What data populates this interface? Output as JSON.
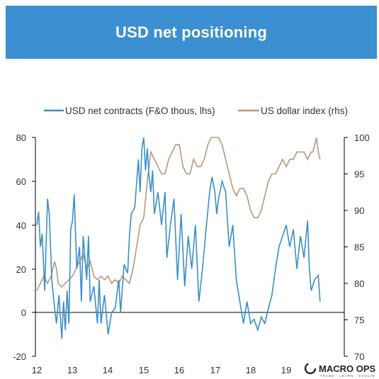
{
  "header": {
    "title": "USD net positioning"
  },
  "logo": {
    "name": "MACRO OPS",
    "tagline": "TRADE · LEARN · EVOLVE"
  },
  "colors": {
    "banner": "#3b8fd0",
    "contracts": "#3a8fc8",
    "dollar_index": "#b8977a"
  },
  "chart_data": {
    "type": "line",
    "title": "",
    "legend_position": "top",
    "x_axis": {
      "ticks": [
        "12",
        "13",
        "14",
        "15",
        "16",
        "17",
        "18",
        "19"
      ],
      "range": [
        2012.0,
        2019.95
      ]
    },
    "y_left": {
      "ticks": [
        "80",
        "60",
        "40",
        "20",
        "0",
        "-20"
      ],
      "range": [
        -20,
        80
      ]
    },
    "y_right": {
      "ticks": [
        "100",
        "95",
        "90",
        "85",
        "80",
        "75",
        "70"
      ],
      "range": [
        70,
        100
      ]
    },
    "series": [
      {
        "name": "USD net contracts (F&O thous, lhs)",
        "axis": "left",
        "x": [
          2012.0,
          2012.05,
          2012.1,
          2012.15,
          2012.22,
          2012.3,
          2012.35,
          2012.42,
          2012.5,
          2012.55,
          2012.62,
          2012.7,
          2012.75,
          2012.8,
          2012.85,
          2012.9,
          2012.95,
          2013.0,
          2013.05,
          2013.12,
          2013.2,
          2013.25,
          2013.3,
          2013.4,
          2013.45,
          2013.5,
          2013.6,
          2013.7,
          2013.75,
          2013.8,
          2013.9,
          2014.0,
          2014.1,
          2014.2,
          2014.3,
          2014.35,
          2014.45,
          2014.55,
          2014.6,
          2014.65,
          2014.75,
          2014.85,
          2014.9,
          2014.95,
          2015.0,
          2015.05,
          2015.1,
          2015.15,
          2015.2,
          2015.25,
          2015.3,
          2015.4,
          2015.5,
          2015.6,
          2015.65,
          2015.75,
          2015.85,
          2015.95,
          2016.05,
          2016.15,
          2016.25,
          2016.35,
          2016.45,
          2016.55,
          2016.65,
          2016.75,
          2016.85,
          2016.92,
          2017.0,
          2017.05,
          2017.1,
          2017.2,
          2017.3,
          2017.4,
          2017.5,
          2017.6,
          2017.7,
          2017.8,
          2017.9,
          2018.0,
          2018.1,
          2018.2,
          2018.3,
          2018.4,
          2018.5,
          2018.6,
          2018.7,
          2018.8,
          2018.9,
          2019.0,
          2019.1,
          2019.2,
          2019.3,
          2019.4,
          2019.5,
          2019.6,
          2019.65,
          2019.7,
          2019.8,
          2019.9,
          2019.95
        ],
        "y": [
          40,
          46,
          30,
          36,
          10,
          52,
          45,
          15,
          2,
          -5,
          8,
          -12,
          5,
          -8,
          10,
          -5,
          38,
          42,
          54,
          20,
          30,
          5,
          35,
          15,
          35,
          5,
          12,
          -5,
          15,
          -5,
          8,
          -10,
          0,
          2,
          15,
          0,
          22,
          18,
          35,
          45,
          48,
          70,
          55,
          75,
          80,
          65,
          75,
          62,
          55,
          65,
          45,
          55,
          40,
          55,
          25,
          40,
          52,
          15,
          45,
          12,
          35,
          20,
          40,
          5,
          20,
          38,
          55,
          62,
          55,
          45,
          52,
          60,
          55,
          30,
          40,
          15,
          5,
          -5,
          5,
          -5,
          -3,
          -8,
          -2,
          -5,
          2,
          8,
          20,
          30,
          35,
          40,
          30,
          38,
          20,
          35,
          25,
          42,
          20,
          10,
          15,
          17,
          5
        ]
      },
      {
        "name": "US dollar index (rhs)",
        "axis": "right",
        "x": [
          2012.0,
          2012.1,
          2012.2,
          2012.3,
          2012.4,
          2012.5,
          2012.55,
          2012.6,
          2012.7,
          2012.8,
          2012.9,
          2013.0,
          2013.1,
          2013.2,
          2013.3,
          2013.4,
          2013.5,
          2013.6,
          2013.7,
          2013.8,
          2013.9,
          2014.0,
          2014.1,
          2014.2,
          2014.3,
          2014.4,
          2014.5,
          2014.6,
          2014.7,
          2014.8,
          2014.9,
          2015.0,
          2015.1,
          2015.2,
          2015.3,
          2015.4,
          2015.5,
          2015.6,
          2015.7,
          2015.8,
          2015.9,
          2016.0,
          2016.1,
          2016.2,
          2016.3,
          2016.4,
          2016.5,
          2016.6,
          2016.7,
          2016.8,
          2016.9,
          2017.0,
          2017.1,
          2017.2,
          2017.3,
          2017.4,
          2017.5,
          2017.6,
          2017.7,
          2017.8,
          2017.9,
          2018.0,
          2018.1,
          2018.2,
          2018.3,
          2018.4,
          2018.5,
          2018.6,
          2018.7,
          2018.8,
          2018.9,
          2019.0,
          2019.1,
          2019.2,
          2019.3,
          2019.4,
          2019.5,
          2019.6,
          2019.7,
          2019.75,
          2019.8,
          2019.85,
          2019.9,
          2019.95
        ],
        "y": [
          79,
          80,
          81,
          80,
          81,
          83,
          82,
          80,
          79.5,
          80,
          80.5,
          81,
          82,
          83,
          84,
          82,
          83,
          81,
          80.5,
          81,
          80.5,
          81,
          80,
          80.5,
          80,
          81,
          80.5,
          80,
          82,
          85,
          88,
          89,
          94,
          98,
          97,
          96,
          95,
          95,
          97,
          98,
          99,
          99,
          96,
          95,
          95,
          97,
          96,
          96,
          97,
          99,
          101,
          102,
          100,
          99,
          97,
          95,
          93,
          92,
          93,
          93,
          92,
          90,
          89,
          89,
          90,
          92,
          94,
          95,
          95,
          96,
          97,
          96,
          97,
          97,
          98,
          98,
          98,
          97,
          98,
          98,
          99,
          101,
          98,
          97
        ]
      }
    ]
  }
}
